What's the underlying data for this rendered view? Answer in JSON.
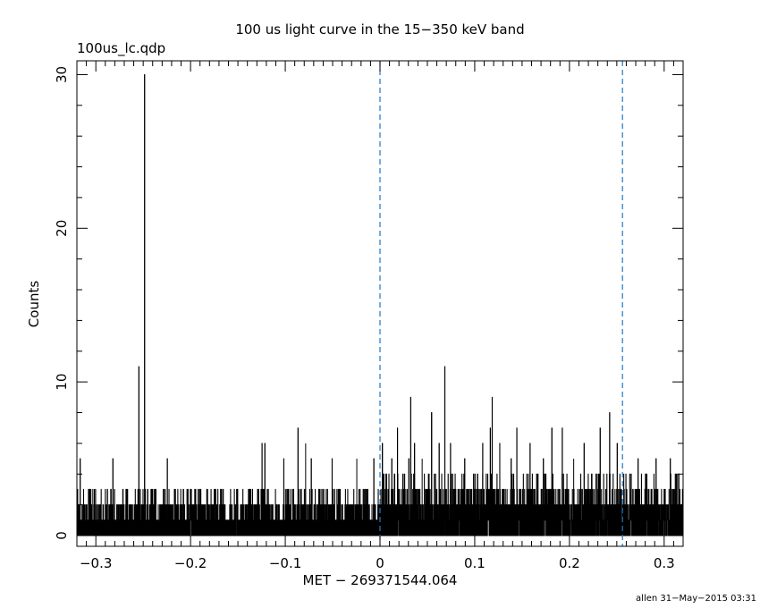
{
  "chart_data": {
    "type": "line",
    "title": "100 us light curve in the 15−350 keV band",
    "subtitle": "100us_lc.qdp",
    "xlabel": "MET − 269371544.064",
    "ylabel": "Counts",
    "xlim": [
      -0.32,
      0.32
    ],
    "ylim": [
      -0.7,
      30.9
    ],
    "xticks": [
      "−0.3",
      "−0.2",
      "−0.1",
      "0",
      "0.1",
      "0.2",
      "0.3"
    ],
    "xtick_values": [
      -0.3,
      -0.2,
      -0.1,
      0,
      0.1,
      0.2,
      0.3
    ],
    "yticks": [
      "0",
      "10",
      "20",
      "30"
    ],
    "ytick_values": [
      0,
      10,
      20,
      30
    ],
    "bin_width": 0.0001,
    "grid": false,
    "series": [
      {
        "style": "histogram-step",
        "color": "#000000",
        "baseline_pre_trigger": "0–3 counts per bin",
        "baseline_post_trigger": "0–5 counts per bin",
        "peaks": [
          {
            "x": -0.3165,
            "y": 5
          },
          {
            "x": -0.282,
            "y": 5
          },
          {
            "x": -0.2545,
            "y": 11
          },
          {
            "x": -0.2485,
            "y": 30
          },
          {
            "x": -0.2245,
            "y": 5
          },
          {
            "x": -0.1245,
            "y": 6
          },
          {
            "x": -0.1215,
            "y": 6
          },
          {
            "x": -0.1015,
            "y": 5
          },
          {
            "x": -0.0865,
            "y": 7
          },
          {
            "x": -0.0785,
            "y": 6
          },
          {
            "x": -0.0725,
            "y": 5
          },
          {
            "x": -0.0505,
            "y": 5
          },
          {
            "x": -0.0245,
            "y": 5
          },
          {
            "x": -0.0065,
            "y": 5
          },
          {
            "x": 0.0025,
            "y": 6
          },
          {
            "x": 0.0125,
            "y": 5
          },
          {
            "x": 0.0185,
            "y": 7
          },
          {
            "x": 0.0305,
            "y": 5
          },
          {
            "x": 0.0325,
            "y": 9
          },
          {
            "x": 0.0365,
            "y": 6
          },
          {
            "x": 0.0445,
            "y": 5
          },
          {
            "x": 0.0545,
            "y": 8
          },
          {
            "x": 0.0625,
            "y": 6
          },
          {
            "x": 0.0685,
            "y": 11
          },
          {
            "x": 0.0745,
            "y": 6
          },
          {
            "x": 0.0895,
            "y": 5
          },
          {
            "x": 0.1085,
            "y": 6
          },
          {
            "x": 0.1165,
            "y": 7
          },
          {
            "x": 0.1185,
            "y": 9
          },
          {
            "x": 0.1265,
            "y": 6
          },
          {
            "x": 0.1385,
            "y": 5
          },
          {
            "x": 0.1445,
            "y": 7
          },
          {
            "x": 0.1585,
            "y": 6
          },
          {
            "x": 0.1725,
            "y": 5
          },
          {
            "x": 0.1815,
            "y": 7
          },
          {
            "x": 0.1925,
            "y": 7
          },
          {
            "x": 0.2045,
            "y": 5
          },
          {
            "x": 0.2155,
            "y": 6
          },
          {
            "x": 0.2325,
            "y": 7
          },
          {
            "x": 0.2425,
            "y": 8
          },
          {
            "x": 0.2505,
            "y": 6
          },
          {
            "x": 0.2725,
            "y": 5
          },
          {
            "x": 0.2915,
            "y": 5
          },
          {
            "x": 0.3065,
            "y": 5
          }
        ]
      }
    ],
    "vlines": [
      {
        "x": 0.0,
        "style": "dashed",
        "color": "#1f77c4"
      },
      {
        "x": 0.256,
        "style": "dashed",
        "color": "#1f77c4"
      }
    ]
  },
  "footer": "allen 31−May−2015 03:31"
}
